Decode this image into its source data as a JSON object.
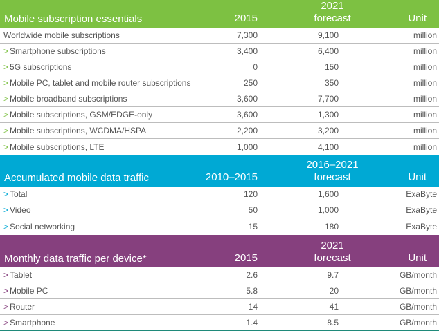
{
  "colors": {
    "green": "#7dc142",
    "blue": "#00a9d4",
    "purple": "#86407e",
    "text": "#555555",
    "divider": "#bdbdbd",
    "bottom_border": "#1f8a7a"
  },
  "sections": [
    {
      "title": "Mobile subscription essentials",
      "col1": "2015",
      "col2_line1": "2021",
      "col2_line2": "forecast",
      "col3": "Unit",
      "rows": [
        {
          "label": "Worldwide mobile subscriptions",
          "arrow": false,
          "v1": "7,300",
          "v2": "9,100",
          "unit": "million"
        },
        {
          "label": "Smartphone subscriptions",
          "arrow": true,
          "v1": "3,400",
          "v2": "6,400",
          "unit": "million"
        },
        {
          "label": "5G subscriptions",
          "arrow": true,
          "v1": "0",
          "v2": "150",
          "unit": "million"
        },
        {
          "label": "Mobile PC, tablet and mobile router subscriptions",
          "arrow": true,
          "v1": "250",
          "v2": "350",
          "unit": "million"
        },
        {
          "label": "Mobile broadband subscriptions",
          "arrow": true,
          "v1": "3,600",
          "v2": "7,700",
          "unit": "million"
        },
        {
          "label": "Mobile subscriptions, GSM/EDGE-only",
          "arrow": true,
          "v1": "3,600",
          "v2": "1,300",
          "unit": "million"
        },
        {
          "label": "Mobile subscriptions, WCDMA/HSPA",
          "arrow": true,
          "v1": "2,200",
          "v2": "3,200",
          "unit": "million"
        },
        {
          "label": "Mobile subscriptions, LTE",
          "arrow": true,
          "v1": "1,000",
          "v2": "4,100",
          "unit": "million"
        }
      ]
    },
    {
      "title": "Accumulated mobile data traffic",
      "col1": "2010–2015",
      "col2_line1": "2016–2021",
      "col2_line2": "forecast",
      "col3": "Unit",
      "rows": [
        {
          "label": "Total",
          "arrow": true,
          "v1": "120",
          "v2": "1,600",
          "unit": "ExaByte"
        },
        {
          "label": "Video",
          "arrow": true,
          "v1": "50",
          "v2": "1,000",
          "unit": "ExaByte"
        },
        {
          "label": "Social networking",
          "arrow": true,
          "v1": "15",
          "v2": "180",
          "unit": "ExaByte"
        }
      ]
    },
    {
      "title": "Monthly data traffic per device*",
      "col1": "2015",
      "col2_line1": "2021",
      "col2_line2": "forecast",
      "col3": "Unit",
      "rows": [
        {
          "label": "Tablet",
          "arrow": true,
          "v1": "2.6",
          "v2": "9.7",
          "unit": "GB/month"
        },
        {
          "label": "Mobile PC",
          "arrow": true,
          "v1": "5.8",
          "v2": "20",
          "unit": "GB/month"
        },
        {
          "label": "Router",
          "arrow": true,
          "v1": "14",
          "v2": "41",
          "unit": "GB/month"
        },
        {
          "label": "Smartphone",
          "arrow": true,
          "v1": "1.4",
          "v2": "8.5",
          "unit": "GB/month"
        }
      ]
    }
  ],
  "arrow_glyph": ">"
}
